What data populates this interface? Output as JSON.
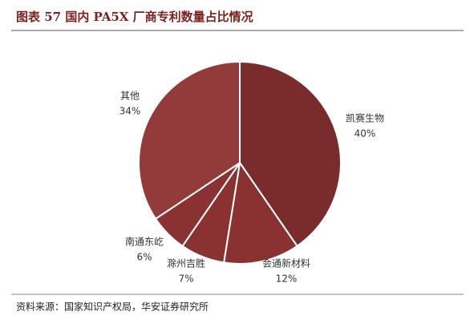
{
  "chart_data": {
    "type": "pie",
    "title": "图表 57  国内 PA5X 厂商专利数量占比情况",
    "categories": [
      "凯赛生物",
      "会通新材料",
      "滁州吉胜",
      "南通东屹",
      "其他"
    ],
    "values": [
      40,
      12,
      7,
      6,
      34
    ],
    "value_labels": [
      "40%",
      "12%",
      "7%",
      "6%",
      "34%"
    ],
    "colors": [
      "#7a2b2c",
      "#8a3132",
      "#8a3132",
      "#8a3132",
      "#933b3b"
    ],
    "source": "资料来源：国家知识产权局，华安证券研究所"
  }
}
